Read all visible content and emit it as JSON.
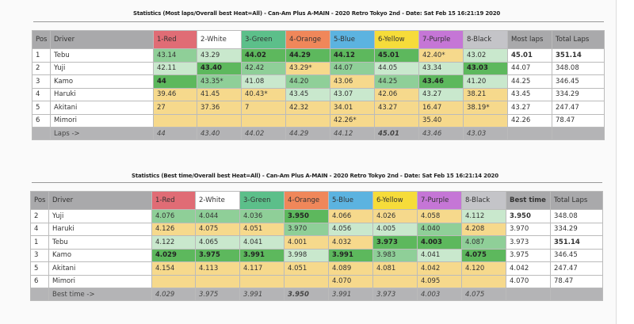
{
  "colors": {
    "dark_green": "#5db85d",
    "mid_green": "#8fcf98",
    "light_green": "#c9e8cd",
    "yellow": "#f6d98c"
  },
  "tables": [
    {
      "title": "Statistics (Most laps/Overall best Heat=All) - Can-Am Plus A-MAIN - 2020 Retro Tokyo 2nd - Date: Sat Feb 15 16:21:19 2020",
      "headers": [
        "Pos",
        "Driver",
        "1-Red",
        "2-White",
        "3-Green",
        "4-Orange",
        "5-Blue",
        "6-Yellow",
        "7-Purple",
        "8-Black",
        "Most laps",
        "Total Laps"
      ],
      "rows": [
        {
          "pos": "1",
          "driver": "Tebu",
          "cells": [
            [
              "43.14",
              "m"
            ],
            [
              "43.29",
              "l"
            ],
            [
              "44.02",
              "d"
            ],
            [
              "44.29",
              "d"
            ],
            [
              "44.12",
              "d"
            ],
            [
              "45.01",
              "d"
            ],
            [
              "42.40*",
              "y"
            ],
            [
              "43.02",
              "l"
            ]
          ],
          "best": "45.01",
          "total": "351.14",
          "bold": true
        },
        {
          "pos": "2",
          "driver": "Yuji",
          "cells": [
            [
              "42.11",
              "l"
            ],
            [
              "43.40",
              "d"
            ],
            [
              "42.42",
              "m"
            ],
            [
              "43.29*",
              "y"
            ],
            [
              "44.07",
              "m"
            ],
            [
              "44.05",
              "l"
            ],
            [
              "43.34",
              "l"
            ],
            [
              "43.03",
              "d"
            ]
          ],
          "best": "44.07",
          "total": "348.08"
        },
        {
          "pos": "3",
          "driver": "Kamo",
          "cells": [
            [
              "44",
              "d"
            ],
            [
              "43.35*",
              "m"
            ],
            [
              "41.08",
              "l"
            ],
            [
              "44.20",
              "m"
            ],
            [
              "43.06",
              "y"
            ],
            [
              "44.25",
              "m"
            ],
            [
              "43.46",
              "d"
            ],
            [
              "41.20",
              "l"
            ]
          ],
          "best": "44.25",
          "total": "346.45"
        },
        {
          "pos": "4",
          "driver": "Haruki",
          "cells": [
            [
              "39.46",
              "y"
            ],
            [
              "41.45",
              "y"
            ],
            [
              "40.43*",
              "y"
            ],
            [
              "43.45",
              "l"
            ],
            [
              "43.07",
              "l"
            ],
            [
              "42.06",
              "y"
            ],
            [
              "43.27",
              "l"
            ],
            [
              "38.21",
              "y"
            ]
          ],
          "best": "43.45",
          "total": "334.29"
        },
        {
          "pos": "5",
          "driver": "Akitani",
          "cells": [
            [
              "27",
              "y"
            ],
            [
              "37.36",
              "y"
            ],
            [
              "7",
              "y"
            ],
            [
              "42.32",
              "y"
            ],
            [
              "34.01",
              "y"
            ],
            [
              "43.27",
              "y"
            ],
            [
              "16.47",
              "y"
            ],
            [
              "38.19*",
              "y"
            ]
          ],
          "best": "43.27",
          "total": "247.47"
        },
        {
          "pos": "6",
          "driver": "Mimori",
          "cells": [
            [
              "",
              "e"
            ],
            [
              "",
              "e"
            ],
            [
              "",
              "e"
            ],
            [
              "",
              "e"
            ],
            [
              "42.26*",
              "y"
            ],
            [
              "",
              "e"
            ],
            [
              "35.40",
              "y"
            ],
            [
              "",
              "e"
            ]
          ],
          "best": "42.26",
          "total": "78.47"
        }
      ],
      "footer_label": "Laps ->",
      "footer": [
        "44",
        "43.40",
        "44.02",
        "44.29",
        "44.12",
        "45.01",
        "43.46",
        "43.03"
      ]
    },
    {
      "title": "Statistics (Best time/Overall best Heat=All) - Can-Am Plus A-MAIN - 2020 Retro Tokyo 2nd - Date: Sat Feb 15 16:21:14 2020",
      "headers": [
        "Pos",
        "Driver",
        "1-Red",
        "2-White",
        "3-Green",
        "4-Orange",
        "5-Blue",
        "6-Yellow",
        "7-Purple",
        "8-Black",
        "Best time",
        "Total Laps"
      ],
      "rows": [
        {
          "pos": "2",
          "driver": "Yuji",
          "cells": [
            [
              "4.076",
              "m"
            ],
            [
              "4.044",
              "m"
            ],
            [
              "4.036",
              "m"
            ],
            [
              "3.950",
              "d"
            ],
            [
              "4.066",
              "y"
            ],
            [
              "4.026",
              "y"
            ],
            [
              "4.058",
              "y"
            ],
            [
              "4.112",
              "l"
            ]
          ],
          "best": "3.950",
          "total": "348.08",
          "boldBest": true
        },
        {
          "pos": "4",
          "driver": "Haruki",
          "cells": [
            [
              "4.126",
              "y"
            ],
            [
              "4.075",
              "y"
            ],
            [
              "4.051",
              "y"
            ],
            [
              "3.970",
              "m"
            ],
            [
              "4.056",
              "l"
            ],
            [
              "4.005",
              "l"
            ],
            [
              "4.040",
              "m"
            ],
            [
              "4.208",
              "y"
            ]
          ],
          "best": "3.970",
          "total": "334.29"
        },
        {
          "pos": "1",
          "driver": "Tebu",
          "cells": [
            [
              "4.122",
              "l"
            ],
            [
              "4.065",
              "l"
            ],
            [
              "4.041",
              "l"
            ],
            [
              "4.001",
              "y"
            ],
            [
              "4.032",
              "y"
            ],
            [
              "3.973",
              "d"
            ],
            [
              "4.003",
              "d"
            ],
            [
              "4.087",
              "m"
            ]
          ],
          "best": "3.973",
          "total": "351.14",
          "boldTotal": true
        },
        {
          "pos": "3",
          "driver": "Kamo",
          "cells": [
            [
              "4.029",
              "d"
            ],
            [
              "3.975",
              "d"
            ],
            [
              "3.991",
              "d"
            ],
            [
              "3.998",
              "l"
            ],
            [
              "3.991",
              "d"
            ],
            [
              "3.983",
              "m"
            ],
            [
              "4.041",
              "l"
            ],
            [
              "4.075",
              "d"
            ]
          ],
          "best": "3.975",
          "total": "346.45"
        },
        {
          "pos": "5",
          "driver": "Akitani",
          "cells": [
            [
              "4.154",
              "y"
            ],
            [
              "4.113",
              "y"
            ],
            [
              "4.117",
              "y"
            ],
            [
              "4.051",
              "y"
            ],
            [
              "4.089",
              "y"
            ],
            [
              "4.081",
              "y"
            ],
            [
              "4.042",
              "y"
            ],
            [
              "4.120",
              "y"
            ]
          ],
          "best": "4.042",
          "total": "247.47"
        },
        {
          "pos": "6",
          "driver": "Mimori",
          "cells": [
            [
              "",
              "e"
            ],
            [
              "",
              "e"
            ],
            [
              "",
              "e"
            ],
            [
              "",
              "e"
            ],
            [
              "4.070",
              "y"
            ],
            [
              "",
              "e"
            ],
            [
              "4.095",
              "y"
            ],
            [
              "",
              "e"
            ]
          ],
          "best": "4.070",
          "total": "78.47"
        }
      ],
      "footer_label": "Best time ->",
      "footer": [
        "4.029",
        "3.975",
        "3.991",
        "3.950",
        "3.991",
        "3.973",
        "4.003",
        "4.075"
      ]
    }
  ]
}
